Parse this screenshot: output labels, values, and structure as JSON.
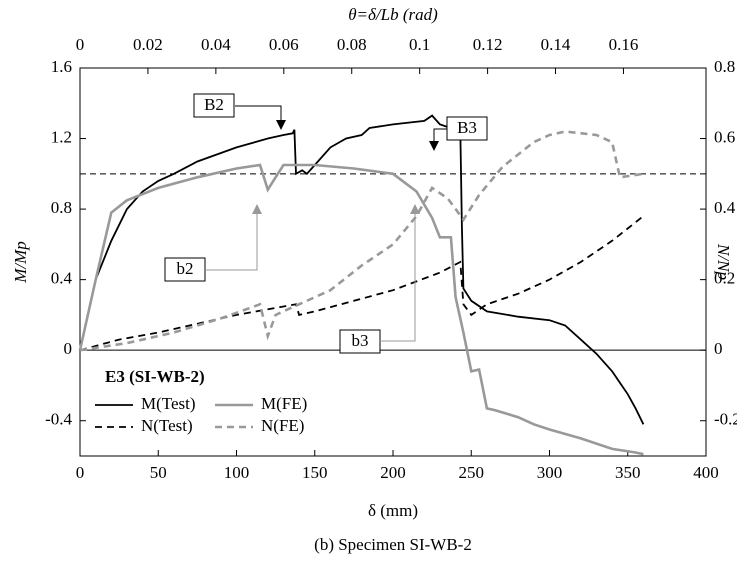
{
  "chart_data": {
    "type": "line",
    "title": "E3 (SI-WB-2)",
    "caption": "(b) Specimen SI-WB-2",
    "x_label": "δ (mm)",
    "x2_label": "θ=δ/Lb (rad)",
    "y_label": "M/Mp",
    "y2_label": "N/Np",
    "xlim": [
      0,
      400
    ],
    "xticks": [
      0,
      50,
      100,
      150,
      200,
      250,
      300,
      350,
      400
    ],
    "x2lim": [
      0,
      0.1843
    ],
    "x2ticks": [
      0,
      0.02,
      0.04,
      0.06,
      0.08,
      0.1,
      0.12,
      0.14,
      0.16
    ],
    "ylim": [
      -0.6,
      1.6
    ],
    "yticks": [
      -0.4,
      0,
      0.4,
      0.8,
      1.2,
      1.6
    ],
    "y2lim": [
      -0.3,
      0.8
    ],
    "y2ticks": [
      -0.2,
      0,
      0.2,
      0.4,
      0.6,
      0.8
    ],
    "reference_lines": [
      1.0,
      0
    ],
    "annotations": [
      "B2",
      "B3",
      "b2",
      "b3"
    ],
    "series": [
      {
        "name": "M(Test)",
        "color": "#000000",
        "linestyle": "solid",
        "axis": "y",
        "x": [
          0,
          5,
          10,
          20,
          30,
          40,
          50,
          60,
          75,
          100,
          120,
          130,
          136,
          137,
          138,
          142,
          145,
          150,
          160,
          170,
          180,
          185,
          200,
          220,
          225,
          230,
          240,
          243,
          244,
          245,
          250,
          260,
          280,
          300,
          310,
          320,
          330,
          340,
          350,
          355,
          360
        ],
        "values": [
          0,
          0.2,
          0.4,
          0.62,
          0.8,
          0.9,
          0.96,
          1.0,
          1.07,
          1.15,
          1.2,
          1.22,
          1.23,
          1.25,
          1.0,
          1.02,
          1.0,
          1.05,
          1.15,
          1.2,
          1.22,
          1.26,
          1.28,
          1.3,
          1.33,
          1.28,
          1.25,
          1.25,
          0.7,
          0.35,
          0.28,
          0.22,
          0.19,
          0.17,
          0.14,
          0.06,
          -0.02,
          -0.12,
          -0.25,
          -0.33,
          -0.42
        ]
      },
      {
        "name": "M(FE)",
        "color": "#999999",
        "linestyle": "solid",
        "axis": "y",
        "x": [
          0,
          10,
          20,
          30,
          50,
          75,
          100,
          115,
          120,
          125,
          130,
          150,
          175,
          200,
          215,
          225,
          230,
          237,
          240,
          245,
          250,
          255,
          260,
          265,
          280,
          290,
          300,
          320,
          340,
          355,
          360
        ],
        "values": [
          0,
          0.4,
          0.78,
          0.85,
          0.92,
          0.98,
          1.03,
          1.05,
          0.91,
          0.98,
          1.05,
          1.05,
          1.03,
          1.0,
          0.9,
          0.75,
          0.64,
          0.64,
          0.3,
          0.1,
          -0.12,
          -0.11,
          -0.33,
          -0.34,
          -0.38,
          -0.42,
          -0.45,
          -0.5,
          -0.56,
          -0.58,
          -0.59
        ]
      },
      {
        "name": "N(Test)",
        "color": "#000000",
        "linestyle": "dashed",
        "axis": "y2",
        "x": [
          0,
          25,
          50,
          80,
          100,
          138,
          140,
          150,
          175,
          200,
          230,
          243,
          245,
          250,
          260,
          280,
          300,
          320,
          340,
          360
        ],
        "values": [
          0,
          0.03,
          0.05,
          0.08,
          0.1,
          0.13,
          0.1,
          0.11,
          0.14,
          0.17,
          0.22,
          0.25,
          0.13,
          0.1,
          0.13,
          0.16,
          0.2,
          0.25,
          0.31,
          0.38
        ]
      },
      {
        "name": "N(FE)",
        "color": "#999999",
        "linestyle": "dashed",
        "axis": "y2",
        "x": [
          0,
          30,
          60,
          90,
          115,
          120,
          125,
          140,
          160,
          180,
          200,
          215,
          225,
          235,
          245,
          255,
          270,
          290,
          300,
          310,
          330,
          340,
          345,
          360
        ],
        "values": [
          0,
          0.02,
          0.05,
          0.09,
          0.13,
          0.04,
          0.1,
          0.13,
          0.17,
          0.24,
          0.3,
          0.38,
          0.46,
          0.43,
          0.37,
          0.44,
          0.52,
          0.59,
          0.61,
          0.62,
          0.61,
          0.59,
          0.49,
          0.5
        ]
      }
    ]
  }
}
